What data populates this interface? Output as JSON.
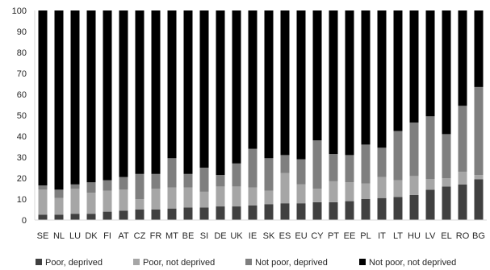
{
  "chart_data": {
    "type": "bar",
    "stacked": true,
    "title": "",
    "xlabel": "",
    "ylabel": "",
    "ylim": [
      0,
      100
    ],
    "yticks": [
      0,
      10,
      20,
      30,
      40,
      50,
      60,
      70,
      80,
      90,
      100
    ],
    "grid": false,
    "legend_position": "bottom",
    "categories": [
      "SE",
      "NL",
      "LU",
      "DK",
      "FI",
      "AT",
      "CZ",
      "FR",
      "MT",
      "BE",
      "SI",
      "DE",
      "UK",
      "IE",
      "SK",
      "ES",
      "EU",
      "CY",
      "PT",
      "EE",
      "PL",
      "IT",
      "LT",
      "HU",
      "LV",
      "EL",
      "RO",
      "BG"
    ],
    "series": [
      {
        "name": "Poor, deprived",
        "color": "#404040",
        "values": [
          2.5,
          2.5,
          3,
          3,
          4,
          4.5,
          5,
          5,
          5.5,
          6,
          6,
          6.5,
          6.5,
          7,
          7.5,
          8,
          8,
          8.5,
          8.5,
          9,
          10,
          10.5,
          11,
          12,
          14.5,
          16,
          17,
          19.5
        ]
      },
      {
        "name": "Poor, not deprived",
        "color": "#a6a6a6",
        "values": [
          12,
          8,
          12,
          10,
          10,
          10,
          5,
          10,
          10,
          9.5,
          7.5,
          9.5,
          9.5,
          8.5,
          6.5,
          14.5,
          9,
          6.5,
          10,
          9,
          7.5,
          10,
          8,
          9,
          5,
          4,
          6,
          2
        ]
      },
      {
        "name": "Not poor, deprived",
        "color": "#7f7f7f",
        "values": [
          2,
          4,
          2,
          5,
          5,
          6,
          12,
          7,
          14,
          6.5,
          11.5,
          5.5,
          11,
          18.5,
          15.5,
          8.5,
          12,
          23,
          13,
          13,
          18.5,
          14,
          23.5,
          25.5,
          30,
          21,
          31.5,
          42
        ]
      },
      {
        "name": "Not poor, not deprived",
        "color": "#000000",
        "values": [
          83.5,
          85.5,
          83,
          82,
          81,
          79.5,
          78,
          78,
          70.5,
          78,
          75,
          78.5,
          73,
          66,
          70.5,
          69,
          71,
          62,
          68.5,
          69,
          64,
          65.5,
          57.5,
          53.5,
          50.5,
          59,
          45.5,
          36.5
        ]
      }
    ]
  }
}
